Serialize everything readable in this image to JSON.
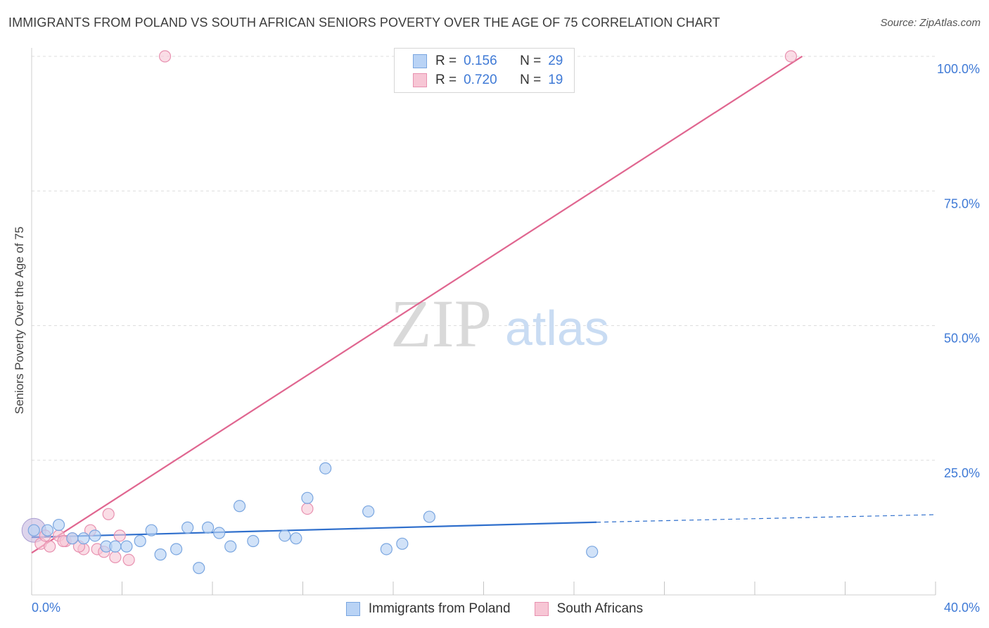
{
  "header": {
    "title": "IMMIGRANTS FROM POLAND VS SOUTH AFRICAN SENIORS POVERTY OVER THE AGE OF 75 CORRELATION CHART",
    "source": "Source: ZipAtlas.com"
  },
  "watermark": {
    "zip": "ZIP",
    "atlas": "atlas"
  },
  "colors": {
    "poland_fill": "#b9d3f5",
    "poland_stroke": "#7aa6e0",
    "poland_line": "#2f6fcc",
    "sa_fill": "#f7c6d5",
    "sa_stroke": "#e891b0",
    "sa_line": "#e06690",
    "grid": "#dedede",
    "tick_text": "#3f7ad6"
  },
  "legend": {
    "rows": [
      {
        "r_label": "R =",
        "r_value": "0.156",
        "n_label": "N =",
        "n_value": "29"
      },
      {
        "r_label": "R =",
        "r_value": "0.720",
        "n_label": "N =",
        "n_value": "19"
      }
    ]
  },
  "chart_data": {
    "type": "scatter",
    "xlabel": "",
    "ylabel": "Seniors Poverty Over the Age of 75",
    "xlim": [
      0,
      40
    ],
    "ylim": [
      0,
      100
    ],
    "x_tick_labels": [
      "0.0%",
      "40.0%"
    ],
    "y_tick_labels": [
      "100.0%",
      "75.0%",
      "50.0%",
      "25.0%"
    ],
    "y_ticks": [
      100,
      75,
      50,
      25
    ],
    "grid": true,
    "legend_position": "bottom",
    "series": [
      {
        "name": "Immigrants from Poland",
        "points": [
          [
            0.1,
            12.0
          ],
          [
            0.7,
            12.0
          ],
          [
            1.2,
            13.0
          ],
          [
            1.8,
            10.5
          ],
          [
            2.3,
            10.5
          ],
          [
            2.8,
            11.0
          ],
          [
            3.3,
            9.0
          ],
          [
            3.7,
            9.0
          ],
          [
            4.2,
            9.0
          ],
          [
            4.8,
            10.0
          ],
          [
            5.3,
            12.0
          ],
          [
            5.7,
            7.5
          ],
          [
            6.4,
            8.5
          ],
          [
            6.9,
            12.5
          ],
          [
            7.4,
            5.0
          ],
          [
            7.8,
            12.5
          ],
          [
            8.3,
            11.5
          ],
          [
            8.8,
            9.0
          ],
          [
            9.2,
            16.5
          ],
          [
            9.8,
            10.0
          ],
          [
            11.2,
            11.0
          ],
          [
            11.7,
            10.5
          ],
          [
            12.2,
            18.0
          ],
          [
            13.0,
            23.5
          ],
          [
            14.9,
            15.5
          ],
          [
            15.7,
            8.5
          ],
          [
            16.4,
            9.5
          ],
          [
            17.6,
            14.5
          ],
          [
            24.8,
            8.0
          ]
        ],
        "trend": {
          "x": [
            0,
            25
          ],
          "y": [
            10.7,
            13.5
          ],
          "dashed_extension": {
            "x": [
              25,
              40
            ],
            "y": [
              13.5,
              14.9
            ]
          }
        }
      },
      {
        "name": "South Africans",
        "points": [
          [
            0.4,
            9.5
          ],
          [
            0.8,
            9.0
          ],
          [
            1.2,
            11.0
          ],
          [
            1.5,
            10.0
          ],
          [
            1.8,
            10.5
          ],
          [
            2.3,
            8.5
          ],
          [
            2.6,
            12.0
          ],
          [
            2.9,
            8.5
          ],
          [
            3.2,
            8.0
          ],
          [
            3.4,
            15.0
          ],
          [
            3.7,
            7.0
          ],
          [
            3.9,
            11.0
          ],
          [
            4.3,
            6.5
          ],
          [
            5.9,
            100.0
          ],
          [
            12.2,
            16.0
          ],
          [
            33.6,
            100.0
          ],
          [
            1.4,
            10.0
          ],
          [
            0.6,
            11.0
          ],
          [
            2.1,
            9.0
          ]
        ],
        "trend": {
          "x": [
            0,
            34.1
          ],
          "y": [
            7.8,
            100.0
          ]
        }
      }
    ]
  }
}
